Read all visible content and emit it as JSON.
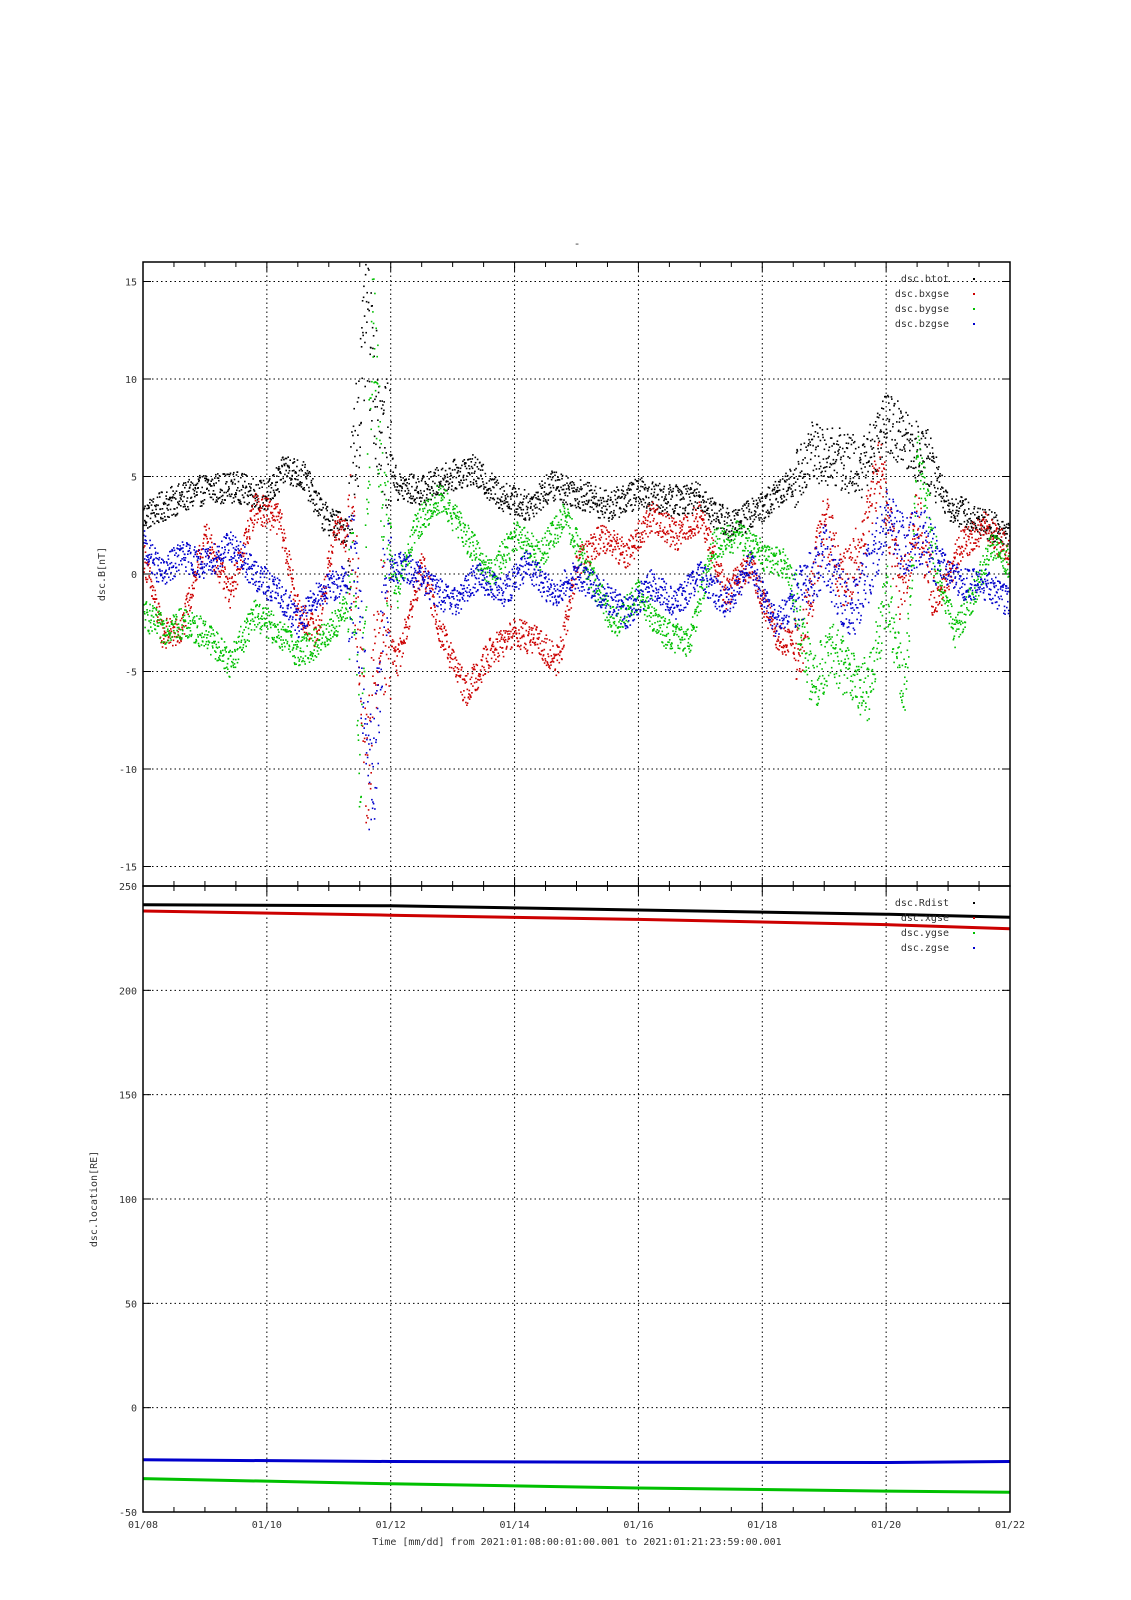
{
  "title_mark": "-",
  "x_axis": {
    "ticks": [
      "01/08",
      "01/10",
      "01/12",
      "01/14",
      "01/16",
      "01/18",
      "01/20",
      "01/22"
    ],
    "label": "Time [mm/dd]  from 2021:01:08:00:01:00.001  to  2021:01:21:23:59:00.001"
  },
  "colors": {
    "black": "#000000",
    "red": "#cc0000",
    "green": "#00c000",
    "blue": "#0000cc"
  },
  "chart_data": [
    {
      "type": "scatter",
      "ylabel": "dsc.B[nT]",
      "ylim": [
        -16,
        16
      ],
      "xlim_days": [
        8,
        22
      ],
      "y_ticks": [
        15,
        10,
        5,
        0,
        -5,
        -10,
        -15
      ],
      "grid": true,
      "legend_position": "top-right",
      "series": [
        {
          "name": "dsc.btot",
          "color": "#000000",
          "points": [
            [
              8.0,
              3.0
            ],
            [
              8.5,
              3.8
            ],
            [
              9.0,
              4.4
            ],
            [
              9.5,
              4.5
            ],
            [
              10.0,
              4.0
            ],
            [
              10.3,
              5.5
            ],
            [
              10.6,
              5.0
            ],
            [
              10.9,
              3.0
            ],
            [
              11.3,
              2.2
            ],
            [
              11.6,
              13.0
            ],
            [
              11.8,
              8.0
            ],
            [
              12.1,
              4.5
            ],
            [
              12.5,
              4.3
            ],
            [
              12.9,
              5.0
            ],
            [
              13.3,
              5.4
            ],
            [
              13.7,
              4.2
            ],
            [
              14.2,
              3.5
            ],
            [
              14.6,
              4.6
            ],
            [
              15.0,
              4.2
            ],
            [
              15.5,
              3.5
            ],
            [
              16.0,
              4.2
            ],
            [
              16.5,
              3.8
            ],
            [
              17.0,
              4.0
            ],
            [
              17.2,
              3.2
            ],
            [
              17.5,
              2.5
            ],
            [
              18.0,
              3.5
            ],
            [
              18.5,
              4.8
            ],
            [
              18.8,
              6.3
            ],
            [
              19.2,
              6.0
            ],
            [
              19.6,
              5.5
            ],
            [
              20.0,
              7.8
            ],
            [
              20.3,
              7.0
            ],
            [
              20.7,
              5.8
            ],
            [
              21.0,
              3.5
            ],
            [
              21.5,
              2.8
            ],
            [
              22.0,
              2.0
            ]
          ]
        },
        {
          "name": "dsc.bxgse",
          "color": "#cc0000",
          "points": [
            [
              8.0,
              1.0
            ],
            [
              8.3,
              -3.0
            ],
            [
              8.6,
              -3.0
            ],
            [
              9.0,
              2.0
            ],
            [
              9.4,
              -1.0
            ],
            [
              9.8,
              3.5
            ],
            [
              10.2,
              2.8
            ],
            [
              10.5,
              -2.0
            ],
            [
              10.8,
              -3.0
            ],
            [
              11.1,
              2.5
            ],
            [
              11.4,
              1.5
            ],
            [
              11.6,
              -10.0
            ],
            [
              11.8,
              -2.0
            ],
            [
              12.1,
              -4.5
            ],
            [
              12.5,
              0.5
            ],
            [
              12.8,
              -3.0
            ],
            [
              13.2,
              -6.0
            ],
            [
              13.6,
              -4.0
            ],
            [
              14.0,
              -3.0
            ],
            [
              14.4,
              -3.5
            ],
            [
              14.7,
              -4.5
            ],
            [
              15.0,
              0.5
            ],
            [
              15.4,
              2.0
            ],
            [
              15.8,
              1.0
            ],
            [
              16.2,
              3.0
            ],
            [
              16.6,
              2.0
            ],
            [
              17.0,
              3.0
            ],
            [
              17.4,
              -1.0
            ],
            [
              17.8,
              0.5
            ],
            [
              18.2,
              -3.0
            ],
            [
              18.6,
              -4.0
            ],
            [
              19.0,
              3.0
            ],
            [
              19.3,
              -0.5
            ],
            [
              19.6,
              1.5
            ],
            [
              19.9,
              6.0
            ],
            [
              20.2,
              -1.0
            ],
            [
              20.5,
              3.0
            ],
            [
              20.8,
              -1.5
            ],
            [
              21.2,
              1.5
            ],
            [
              21.6,
              2.5
            ],
            [
              22.0,
              1.0
            ]
          ]
        },
        {
          "name": "dsc.bygse",
          "color": "#00c000",
          "points": [
            [
              8.0,
              -2.0
            ],
            [
              8.3,
              -2.8
            ],
            [
              8.6,
              -2.5
            ],
            [
              9.0,
              -3.0
            ],
            [
              9.4,
              -4.5
            ],
            [
              9.8,
              -2.0
            ],
            [
              10.2,
              -3.0
            ],
            [
              10.5,
              -4.0
            ],
            [
              10.8,
              -3.5
            ],
            [
              11.1,
              -2.5
            ],
            [
              11.4,
              -1.0
            ],
            [
              11.5,
              -10.0
            ],
            [
              11.7,
              13.0
            ],
            [
              11.9,
              2.0
            ],
            [
              12.1,
              -1.0
            ],
            [
              12.4,
              2.5
            ],
            [
              12.8,
              4.0
            ],
            [
              13.2,
              2.0
            ],
            [
              13.6,
              0.0
            ],
            [
              14.0,
              2.0
            ],
            [
              14.4,
              1.0
            ],
            [
              14.8,
              3.0
            ],
            [
              15.2,
              0.0
            ],
            [
              15.6,
              -2.5
            ],
            [
              16.0,
              -1.0
            ],
            [
              16.4,
              -3.0
            ],
            [
              16.8,
              -3.5
            ],
            [
              17.2,
              1.5
            ],
            [
              17.6,
              2.0
            ],
            [
              18.0,
              1.0
            ],
            [
              18.4,
              0.5
            ],
            [
              18.8,
              -5.5
            ],
            [
              19.1,
              -4.0
            ],
            [
              19.4,
              -5.0
            ],
            [
              19.7,
              -6.0
            ],
            [
              20.0,
              -1.0
            ],
            [
              20.3,
              -6.0
            ],
            [
              20.5,
              6.0
            ],
            [
              20.8,
              0.5
            ],
            [
              21.1,
              -3.0
            ],
            [
              21.4,
              -1.0
            ],
            [
              21.7,
              1.5
            ],
            [
              22.0,
              0.5
            ]
          ]
        },
        {
          "name": "dsc.bzgse",
          "color": "#0000cc",
          "points": [
            [
              8.0,
              1.5
            ],
            [
              8.3,
              0.0
            ],
            [
              8.6,
              1.0
            ],
            [
              9.0,
              0.5
            ],
            [
              9.4,
              1.5
            ],
            [
              9.8,
              0.0
            ],
            [
              10.2,
              -1.0
            ],
            [
              10.5,
              -2.5
            ],
            [
              10.8,
              -1.0
            ],
            [
              11.1,
              -0.5
            ],
            [
              11.4,
              0.0
            ],
            [
              11.7,
              -12.0
            ],
            [
              11.9,
              0.0
            ],
            [
              12.2,
              0.5
            ],
            [
              12.6,
              -0.5
            ],
            [
              13.0,
              -1.5
            ],
            [
              13.4,
              0.0
            ],
            [
              13.8,
              -1.0
            ],
            [
              14.2,
              0.5
            ],
            [
              14.6,
              -1.0
            ],
            [
              15.0,
              0.0
            ],
            [
              15.4,
              -1.0
            ],
            [
              15.8,
              -2.0
            ],
            [
              16.2,
              -0.5
            ],
            [
              16.6,
              -1.5
            ],
            [
              17.0,
              0.0
            ],
            [
              17.4,
              -1.5
            ],
            [
              17.8,
              0.5
            ],
            [
              18.2,
              -2.5
            ],
            [
              18.6,
              -1.0
            ],
            [
              19.0,
              1.0
            ],
            [
              19.4,
              -2.0
            ],
            [
              19.7,
              0.0
            ],
            [
              20.0,
              3.0
            ],
            [
              20.3,
              1.5
            ],
            [
              20.6,
              2.0
            ],
            [
              20.9,
              0.5
            ],
            [
              21.2,
              -0.5
            ],
            [
              21.6,
              -0.5
            ],
            [
              22.0,
              -1.5
            ]
          ]
        }
      ]
    },
    {
      "type": "line",
      "ylabel": "dsc.location[RE]",
      "ylim": [
        -50,
        250
      ],
      "xlim_days": [
        8,
        22
      ],
      "y_ticks": [
        250,
        200,
        150,
        100,
        50,
        0,
        -50
      ],
      "grid": true,
      "legend_position": "top-right",
      "series": [
        {
          "name": "dsc.Rdist",
          "color": "#000000",
          "points": [
            [
              8.0,
              241.0
            ],
            [
              12.0,
              240.5
            ],
            [
              16.0,
              238.5
            ],
            [
              20.0,
              236.5
            ],
            [
              22.0,
              235.0
            ]
          ]
        },
        {
          "name": "dsc.xgse",
          "color": "#cc0000",
          "points": [
            [
              8.0,
              238.0
            ],
            [
              12.0,
              236.0
            ],
            [
              16.0,
              234.0
            ],
            [
              20.0,
              231.5
            ],
            [
              22.0,
              229.5
            ]
          ]
        },
        {
          "name": "dsc.ygse",
          "color": "#00c000",
          "points": [
            [
              8.0,
              -34.0
            ],
            [
              12.0,
              -36.5
            ],
            [
              16.0,
              -38.5
            ],
            [
              20.0,
              -40.0
            ],
            [
              22.0,
              -40.5
            ]
          ]
        },
        {
          "name": "dsc.zgse",
          "color": "#0000cc",
          "points": [
            [
              8.0,
              -25.0
            ],
            [
              12.0,
              -25.8
            ],
            [
              16.0,
              -26.2
            ],
            [
              20.0,
              -26.3
            ],
            [
              22.0,
              -25.8
            ]
          ]
        }
      ]
    }
  ]
}
